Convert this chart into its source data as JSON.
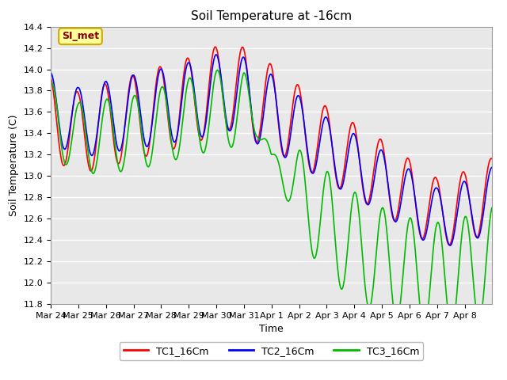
{
  "title": "Soil Temperature at -16cm",
  "xlabel": "Time",
  "ylabel": "Soil Temperature (C)",
  "ylim": [
    11.8,
    14.4
  ],
  "xtick_labels": [
    "Mar 24",
    "Mar 25",
    "Mar 26",
    "Mar 27",
    "Mar 28",
    "Mar 29",
    "Mar 30",
    "Mar 31",
    "Apr 1",
    "Apr 2",
    "Apr 3",
    "Apr 4",
    "Apr 5",
    "Apr 6",
    "Apr 7",
    "Apr 8"
  ],
  "legend_labels": [
    "TC1_16Cm",
    "TC2_16Cm",
    "TC3_16Cm"
  ],
  "line_colors": [
    "#ff0000",
    "#0000ff",
    "#00bb00"
  ],
  "line_width": 1.2,
  "fig_bg_color": "#ffffff",
  "plot_bg_color": "#e8e8e8",
  "annotation_text": "SI_met",
  "annotation_bg": "#ffff99",
  "annotation_border": "#ccaa00",
  "title_fontsize": 11,
  "label_fontsize": 9,
  "tick_fontsize": 8
}
